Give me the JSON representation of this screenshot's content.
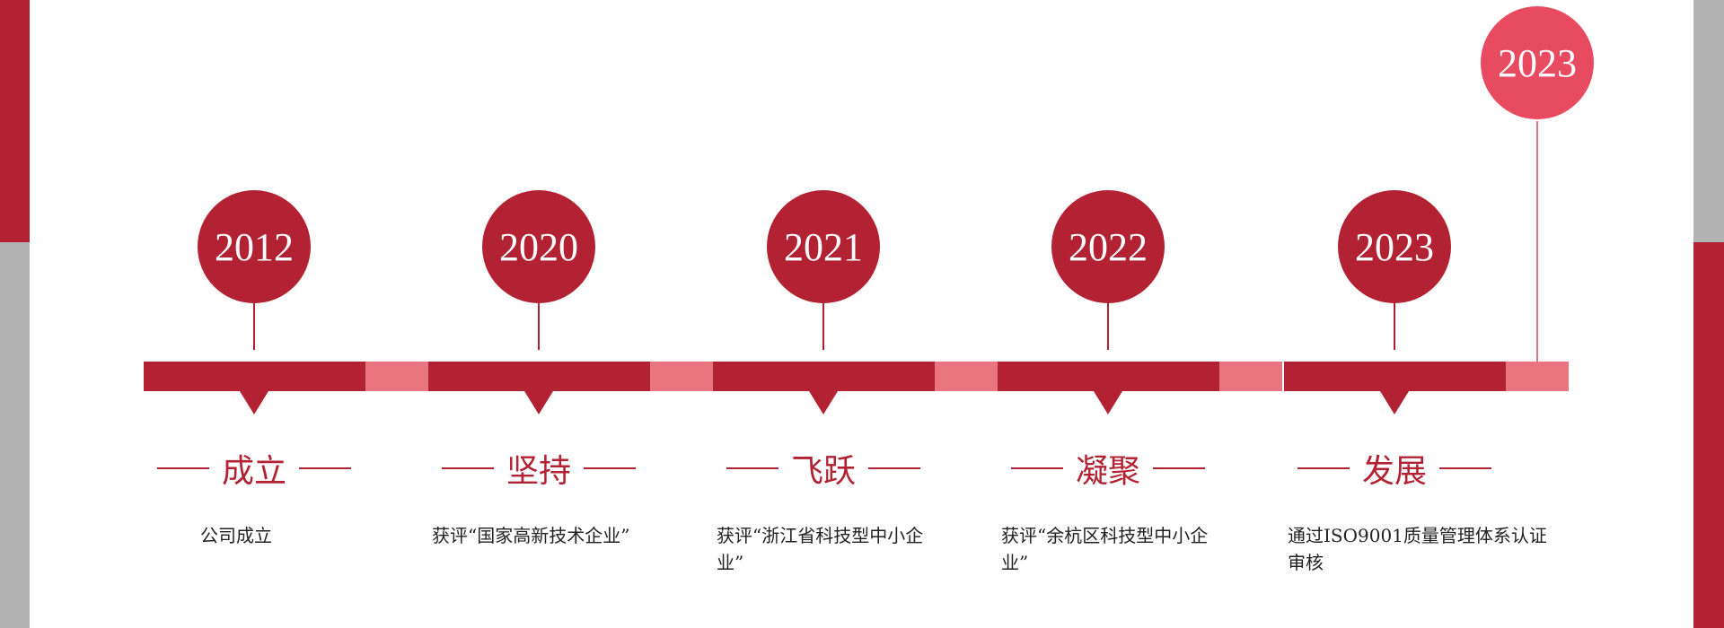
{
  "colors": {
    "primary": "#b22232",
    "accent": "#e84a5f",
    "connector": "#e87580",
    "side_gray": "#b3b3b3"
  },
  "milestones": [
    {
      "year": "2012",
      "title": "成立",
      "desc": "公司成立"
    },
    {
      "year": "2020",
      "title": "坚持",
      "desc": "获评“国家高新技术企业”"
    },
    {
      "year": "2021",
      "title": "飞跃",
      "desc": "获评“浙江省科技型中小企业”"
    },
    {
      "year": "2022",
      "title": "凝聚",
      "desc": "获评“余杭区科技型中小企业”"
    },
    {
      "year": "2023",
      "title": "发展",
      "desc": "通过ISO9001质量管理体系认证审核"
    }
  ],
  "future": {
    "year": "2023"
  }
}
